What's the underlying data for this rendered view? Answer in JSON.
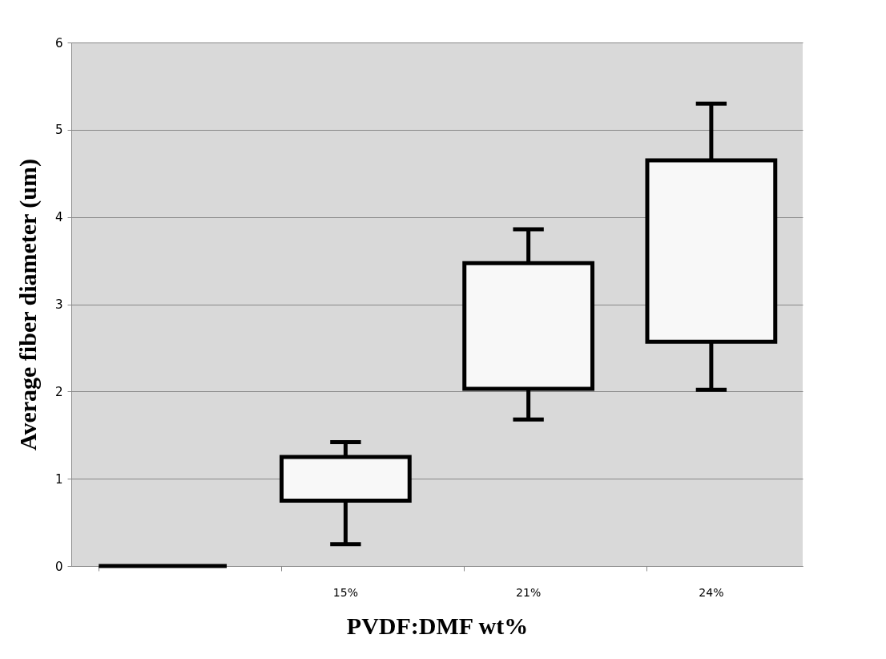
{
  "chart_data": {
    "type": "bar",
    "xlabel": "PVDF:DMF wt%",
    "ylabel": "Average fiber diameter (um)",
    "categories": [
      null,
      "15%",
      "21%",
      "24%"
    ],
    "base": [
      0,
      0.75,
      2.03,
      2.57
    ],
    "values": [
      0,
      0.5,
      1.44,
      2.08
    ],
    "errors": [
      null,
      [
        0.25,
        1.42
      ],
      [
        1.68,
        3.86
      ],
      [
        2.02,
        5.3
      ]
    ],
    "colors": [
      "#000000",
      "#f8f8f8",
      "#f8f8f8",
      "#f8f8f8"
    ],
    "ylim": [
      0,
      6
    ],
    "yticks": [
      0,
      1,
      2,
      3,
      4,
      5,
      6
    ],
    "grid": "y"
  }
}
